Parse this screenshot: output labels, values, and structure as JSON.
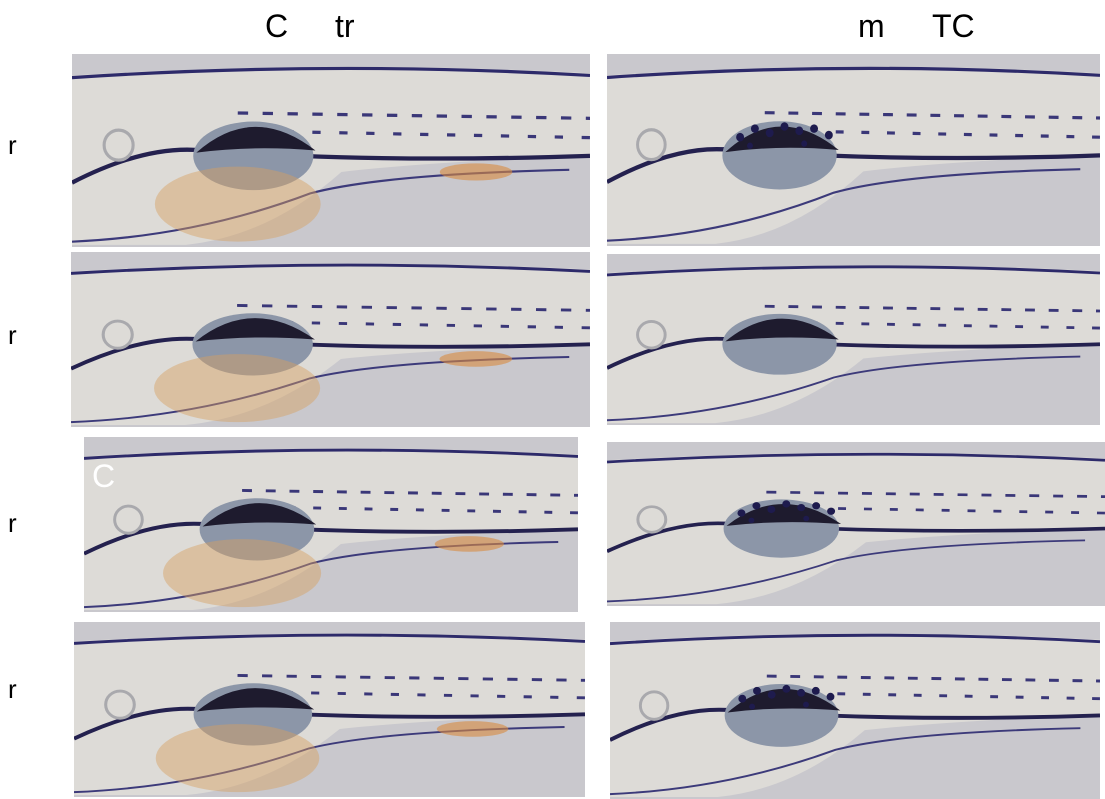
{
  "header": {
    "left": [
      "C",
      "tr"
    ],
    "right": [
      "m",
      "TC"
    ]
  },
  "row_labels": [
    "r",
    "r",
    "r",
    "r"
  ],
  "panel_overlay": "C"
}
